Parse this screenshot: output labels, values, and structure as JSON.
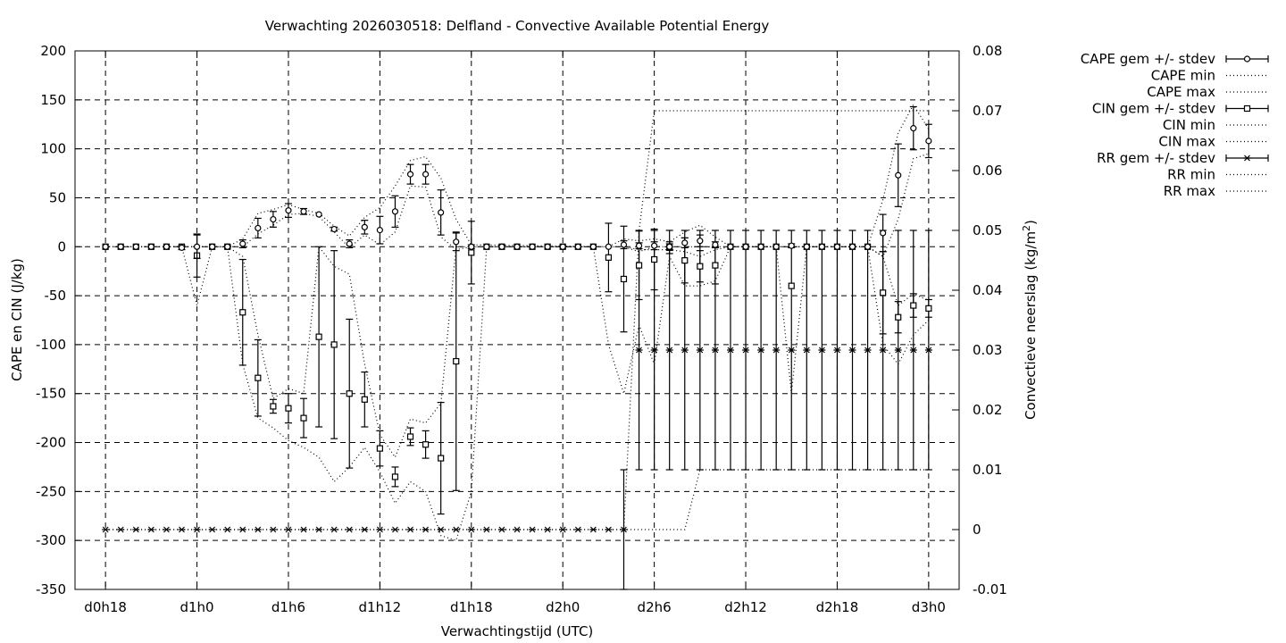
{
  "chart_data": {
    "type": "line",
    "title": "Verwachting 2026030518: Delfland - Convective Available Potential Energy",
    "xlabel": "Verwachtingstijd (UTC)",
    "ylabel": "CAPE en CIN (J/kg)",
    "y2label": "Convectieve neerslag (kg/m",
    "y2label_sup": "2",
    "y2label_end": ")",
    "xlim": [
      -2,
      56
    ],
    "ylim": [
      -350,
      200
    ],
    "y2lim": [
      -0.01,
      0.08
    ],
    "grid": true,
    "legend_position": "outside-right",
    "x_ticks": [
      {
        "x": 0,
        "label": "d0h18"
      },
      {
        "x": 6,
        "label": "d1h0"
      },
      {
        "x": 12,
        "label": "d1h6"
      },
      {
        "x": 18,
        "label": "d1h12"
      },
      {
        "x": 24,
        "label": "d1h18"
      },
      {
        "x": 30,
        "label": "d2h0"
      },
      {
        "x": 36,
        "label": "d2h6"
      },
      {
        "x": 42,
        "label": "d2h12"
      },
      {
        "x": 48,
        "label": "d2h18"
      },
      {
        "x": 54,
        "label": "d3h0"
      }
    ],
    "y_ticks": [
      "200",
      "150",
      "100",
      "50",
      "0",
      "-50",
      "-100",
      "-150",
      "-200",
      "-250",
      "-300",
      "-350"
    ],
    "y_tick_values": [
      200,
      150,
      100,
      50,
      0,
      -50,
      -100,
      -150,
      -200,
      -250,
      -300,
      -350
    ],
    "y2_ticks": [
      "0.08",
      "0.07",
      "0.06",
      "0.05",
      "0.04",
      "0.03",
      "0.02",
      "0.01",
      "0",
      "-0.01"
    ],
    "y2_tick_values": [
      0.08,
      0.07,
      0.06,
      0.05,
      0.04,
      0.03,
      0.02,
      0.01,
      0,
      -0.01
    ],
    "legend": [
      {
        "label": "CAPE gem +/- stdev",
        "style": "errorbar-circle"
      },
      {
        "label": "CAPE min",
        "style": "dotted"
      },
      {
        "label": "CAPE max",
        "style": "dotted"
      },
      {
        "label": "CIN gem +/- stdev",
        "style": "errorbar-square"
      },
      {
        "label": "CIN min",
        "style": "dotted"
      },
      {
        "label": "CIN max",
        "style": "dotted"
      },
      {
        "label": "RR gem +/- stdev",
        "style": "errorbar-star"
      },
      {
        "label": "RR min",
        "style": "dotted"
      },
      {
        "label": "RR max",
        "style": "dotted"
      }
    ],
    "cape": [
      {
        "x": 0,
        "y": 0,
        "sd": 0
      },
      {
        "x": 1,
        "y": 0,
        "sd": 0
      },
      {
        "x": 2,
        "y": 0,
        "sd": 0
      },
      {
        "x": 3,
        "y": 0,
        "sd": 0
      },
      {
        "x": 4,
        "y": 0,
        "sd": 0
      },
      {
        "x": 5,
        "y": -1,
        "sd": 2
      },
      {
        "x": 6,
        "y": 0,
        "sd": 12
      },
      {
        "x": 7,
        "y": 0,
        "sd": 0
      },
      {
        "x": 8,
        "y": 0,
        "sd": 0
      },
      {
        "x": 9,
        "y": 3,
        "sd": 4
      },
      {
        "x": 10,
        "y": 19,
        "sd": 10
      },
      {
        "x": 11,
        "y": 28,
        "sd": 8
      },
      {
        "x": 12,
        "y": 37,
        "sd": 7
      },
      {
        "x": 13,
        "y": 36,
        "sd": 3
      },
      {
        "x": 14,
        "y": 33,
        "sd": 0
      },
      {
        "x": 15,
        "y": 18,
        "sd": 2
      },
      {
        "x": 16,
        "y": 3,
        "sd": 4
      },
      {
        "x": 17,
        "y": 20,
        "sd": 7
      },
      {
        "x": 18,
        "y": 17,
        "sd": 14
      },
      {
        "x": 19,
        "y": 36,
        "sd": 16
      },
      {
        "x": 20,
        "y": 74,
        "sd": 10
      },
      {
        "x": 21,
        "y": 74,
        "sd": 10
      },
      {
        "x": 22,
        "y": 35,
        "sd": 23
      },
      {
        "x": 23,
        "y": 5,
        "sd": 9
      },
      {
        "x": 24,
        "y": 0,
        "sd": 2
      },
      {
        "x": 25,
        "y": 0,
        "sd": 0
      },
      {
        "x": 26,
        "y": 0,
        "sd": 0
      },
      {
        "x": 27,
        "y": 0,
        "sd": 0
      },
      {
        "x": 28,
        "y": 0,
        "sd": 0
      },
      {
        "x": 29,
        "y": 0,
        "sd": 0
      },
      {
        "x": 30,
        "y": 0,
        "sd": 0
      },
      {
        "x": 31,
        "y": 0,
        "sd": 0
      },
      {
        "x": 32,
        "y": 0,
        "sd": 0
      },
      {
        "x": 33,
        "y": 0,
        "sd": 0
      },
      {
        "x": 34,
        "y": 2,
        "sd": 4
      },
      {
        "x": 35,
        "y": 1,
        "sd": 3
      },
      {
        "x": 36,
        "y": 1,
        "sd": 4
      },
      {
        "x": 37,
        "y": 0,
        "sd": 3
      },
      {
        "x": 38,
        "y": 4,
        "sd": 5
      },
      {
        "x": 39,
        "y": 6,
        "sd": 6
      },
      {
        "x": 40,
        "y": 2,
        "sd": 3
      },
      {
        "x": 41,
        "y": 0,
        "sd": 0
      },
      {
        "x": 42,
        "y": 0,
        "sd": 0
      },
      {
        "x": 43,
        "y": 0,
        "sd": 0
      },
      {
        "x": 44,
        "y": 0,
        "sd": 0
      },
      {
        "x": 45,
        "y": 1,
        "sd": 2
      },
      {
        "x": 46,
        "y": 0,
        "sd": 0
      },
      {
        "x": 47,
        "y": 0,
        "sd": 0
      },
      {
        "x": 48,
        "y": 0,
        "sd": 0
      },
      {
        "x": 49,
        "y": 0,
        "sd": 0
      },
      {
        "x": 50,
        "y": 0,
        "sd": 0
      },
      {
        "x": 51,
        "y": 14,
        "sd": 19
      },
      {
        "x": 52,
        "y": 73,
        "sd": 32
      },
      {
        "x": 53,
        "y": 121,
        "sd": 22
      },
      {
        "x": 54,
        "y": 108,
        "sd": 17
      }
    ],
    "cape_min": [
      [
        0,
        0
      ],
      [
        5,
        0
      ],
      [
        6,
        0
      ],
      [
        8,
        0
      ],
      [
        9,
        0
      ],
      [
        10,
        13
      ],
      [
        11,
        22
      ],
      [
        12,
        33
      ],
      [
        13,
        34
      ],
      [
        14,
        31
      ],
      [
        15,
        15
      ],
      [
        16,
        -1
      ],
      [
        17,
        12
      ],
      [
        18,
        2
      ],
      [
        19,
        15
      ],
      [
        20,
        62
      ],
      [
        21,
        61
      ],
      [
        22,
        10
      ],
      [
        23,
        -3
      ],
      [
        24,
        0
      ],
      [
        34,
        0
      ],
      [
        35,
        -3
      ],
      [
        36,
        -3
      ],
      [
        37,
        -3
      ],
      [
        38,
        -5
      ],
      [
        39,
        -10
      ],
      [
        40,
        -3
      ],
      [
        41,
        0
      ],
      [
        50,
        0
      ],
      [
        51,
        -10
      ],
      [
        52,
        28
      ],
      [
        53,
        90
      ],
      [
        54,
        95
      ]
    ],
    "cape_max": [
      [
        0,
        0
      ],
      [
        5,
        0
      ],
      [
        6,
        0
      ],
      [
        8,
        0
      ],
      [
        9,
        8
      ],
      [
        10,
        34
      ],
      [
        11,
        38
      ],
      [
        12,
        43
      ],
      [
        13,
        38
      ],
      [
        14,
        34
      ],
      [
        15,
        21
      ],
      [
        16,
        11
      ],
      [
        17,
        30
      ],
      [
        18,
        40
      ],
      [
        19,
        62
      ],
      [
        20,
        88
      ],
      [
        21,
        92
      ],
      [
        22,
        70
      ],
      [
        23,
        28
      ],
      [
        24,
        2
      ],
      [
        33,
        0
      ],
      [
        34,
        8
      ],
      [
        35,
        6
      ],
      [
        36,
        8
      ],
      [
        37,
        5
      ],
      [
        38,
        15
      ],
      [
        39,
        22
      ],
      [
        40,
        10
      ],
      [
        41,
        0
      ],
      [
        50,
        0
      ],
      [
        51,
        48
      ],
      [
        52,
        116
      ],
      [
        53,
        145
      ],
      [
        54,
        120
      ]
    ],
    "cin": [
      {
        "x": 0,
        "y": 0,
        "sd": 0
      },
      {
        "x": 1,
        "y": 0,
        "sd": 0
      },
      {
        "x": 2,
        "y": 0,
        "sd": 0
      },
      {
        "x": 3,
        "y": 0,
        "sd": 0
      },
      {
        "x": 4,
        "y": 0,
        "sd": 0
      },
      {
        "x": 5,
        "y": 0,
        "sd": 0
      },
      {
        "x": 6,
        "y": -9,
        "sd": 22
      },
      {
        "x": 7,
        "y": 0,
        "sd": 0
      },
      {
        "x": 8,
        "y": 0,
        "sd": 0
      },
      {
        "x": 9,
        "y": -67,
        "sd": 54
      },
      {
        "x": 10,
        "y": -134,
        "sd": 39
      },
      {
        "x": 11,
        "y": -163,
        "sd": 7
      },
      {
        "x": 12,
        "y": -165,
        "sd": 15
      },
      {
        "x": 13,
        "y": -175,
        "sd": 20
      },
      {
        "x": 14,
        "y": -92,
        "sd": 92
      },
      {
        "x": 15,
        "y": -100,
        "sd": 96
      },
      {
        "x": 16,
        "y": -150,
        "sd": 76
      },
      {
        "x": 17,
        "y": -156,
        "sd": 28
      },
      {
        "x": 18,
        "y": -206,
        "sd": 18
      },
      {
        "x": 19,
        "y": -235,
        "sd": 10
      },
      {
        "x": 20,
        "y": -194,
        "sd": 9
      },
      {
        "x": 21,
        "y": -202,
        "sd": 14
      },
      {
        "x": 22,
        "y": -216,
        "sd": 57
      },
      {
        "x": 23,
        "y": -117,
        "sd": 132
      },
      {
        "x": 24,
        "y": -6,
        "sd": 32
      },
      {
        "x": 25,
        "y": 0,
        "sd": 0
      },
      {
        "x": 26,
        "y": 0,
        "sd": 0
      },
      {
        "x": 27,
        "y": 0,
        "sd": 0
      },
      {
        "x": 28,
        "y": 0,
        "sd": 0
      },
      {
        "x": 29,
        "y": 0,
        "sd": 0
      },
      {
        "x": 30,
        "y": 0,
        "sd": 0
      },
      {
        "x": 31,
        "y": 0,
        "sd": 0
      },
      {
        "x": 32,
        "y": 0,
        "sd": 0
      },
      {
        "x": 33,
        "y": -11,
        "sd": 35
      },
      {
        "x": 34,
        "y": -33,
        "sd": 54
      },
      {
        "x": 35,
        "y": -19,
        "sd": 35
      },
      {
        "x": 36,
        "y": -13,
        "sd": 31
      },
      {
        "x": 37,
        "y": -1,
        "sd": 6
      },
      {
        "x": 38,
        "y": -14,
        "sd": 23
      },
      {
        "x": 39,
        "y": -20,
        "sd": 16
      },
      {
        "x": 40,
        "y": -19,
        "sd": 19
      },
      {
        "x": 41,
        "y": 0,
        "sd": 0
      },
      {
        "x": 42,
        "y": 0,
        "sd": 0
      },
      {
        "x": 43,
        "y": 0,
        "sd": 0
      },
      {
        "x": 44,
        "y": 0,
        "sd": 0
      },
      {
        "x": 45,
        "y": -40,
        "sd": 0
      },
      {
        "x": 46,
        "y": 0,
        "sd": 0
      },
      {
        "x": 47,
        "y": 0,
        "sd": 0
      },
      {
        "x": 48,
        "y": 0,
        "sd": 0
      },
      {
        "x": 49,
        "y": 0,
        "sd": 0
      },
      {
        "x": 50,
        "y": 0,
        "sd": 0
      },
      {
        "x": 51,
        "y": -47,
        "sd": 42
      },
      {
        "x": 52,
        "y": -72,
        "sd": 16
      },
      {
        "x": 53,
        "y": -60,
        "sd": 12
      },
      {
        "x": 54,
        "y": -63,
        "sd": 9
      }
    ],
    "cin_min": [
      [
        0,
        0
      ],
      [
        5,
        0
      ],
      [
        6,
        -60
      ],
      [
        7,
        0
      ],
      [
        8,
        0
      ],
      [
        9,
        -120
      ],
      [
        10,
        -175
      ],
      [
        11,
        -185
      ],
      [
        12,
        -198
      ],
      [
        13,
        -205
      ],
      [
        14,
        -215
      ],
      [
        15,
        -240
      ],
      [
        16,
        -225
      ],
      [
        17,
        -205
      ],
      [
        18,
        -230
      ],
      [
        19,
        -262
      ],
      [
        20,
        -240
      ],
      [
        21,
        -250
      ],
      [
        22,
        -295
      ],
      [
        23,
        -300
      ],
      [
        24,
        -250
      ],
      [
        25,
        0
      ],
      [
        32,
        0
      ],
      [
        33,
        -100
      ],
      [
        34,
        -150
      ],
      [
        35,
        -80
      ],
      [
        36,
        -120
      ],
      [
        37,
        -10
      ],
      [
        38,
        -40
      ],
      [
        39,
        -40
      ],
      [
        40,
        -35
      ],
      [
        41,
        0
      ],
      [
        44,
        0
      ],
      [
        45,
        -150
      ],
      [
        46,
        0
      ],
      [
        50,
        0
      ],
      [
        51,
        -100
      ],
      [
        52,
        -120
      ],
      [
        53,
        -90
      ],
      [
        54,
        -75
      ]
    ],
    "cin_max": [
      [
        0,
        0
      ],
      [
        5,
        0
      ],
      [
        6,
        0
      ],
      [
        8,
        0
      ],
      [
        9,
        -10
      ],
      [
        10,
        -90
      ],
      [
        11,
        -155
      ],
      [
        12,
        -145
      ],
      [
        13,
        -150
      ],
      [
        14,
        0
      ],
      [
        15,
        -20
      ],
      [
        16,
        -28
      ],
      [
        17,
        -120
      ],
      [
        18,
        -192
      ],
      [
        19,
        -215
      ],
      [
        20,
        -176
      ],
      [
        21,
        -180
      ],
      [
        22,
        -160
      ],
      [
        23,
        0
      ],
      [
        24,
        0
      ],
      [
        32,
        0
      ],
      [
        33,
        0
      ],
      [
        34,
        0
      ],
      [
        35,
        -5
      ],
      [
        36,
        0
      ],
      [
        37,
        0
      ],
      [
        38,
        0
      ],
      [
        39,
        0
      ],
      [
        40,
        0
      ],
      [
        41,
        0
      ],
      [
        50,
        0
      ],
      [
        51,
        -10
      ],
      [
        52,
        -60
      ],
      [
        53,
        -48
      ],
      [
        54,
        -55
      ]
    ],
    "rr": [
      {
        "x": 0,
        "y": 0,
        "sd": 0
      },
      {
        "x": 1,
        "y": 0,
        "sd": 0
      },
      {
        "x": 2,
        "y": 0,
        "sd": 0
      },
      {
        "x": 3,
        "y": 0,
        "sd": 0
      },
      {
        "x": 4,
        "y": 0,
        "sd": 0
      },
      {
        "x": 5,
        "y": 0,
        "sd": 0
      },
      {
        "x": 6,
        "y": 0,
        "sd": 0
      },
      {
        "x": 7,
        "y": 0,
        "sd": 0
      },
      {
        "x": 8,
        "y": 0,
        "sd": 0
      },
      {
        "x": 9,
        "y": 0,
        "sd": 0
      },
      {
        "x": 10,
        "y": 0,
        "sd": 0
      },
      {
        "x": 11,
        "y": 0,
        "sd": 0
      },
      {
        "x": 12,
        "y": 0,
        "sd": 0
      },
      {
        "x": 13,
        "y": 0,
        "sd": 0
      },
      {
        "x": 14,
        "y": 0,
        "sd": 0
      },
      {
        "x": 15,
        "y": 0,
        "sd": 0
      },
      {
        "x": 16,
        "y": 0,
        "sd": 0
      },
      {
        "x": 17,
        "y": 0,
        "sd": 0
      },
      {
        "x": 18,
        "y": 0,
        "sd": 0
      },
      {
        "x": 19,
        "y": 0,
        "sd": 0
      },
      {
        "x": 20,
        "y": 0,
        "sd": 0
      },
      {
        "x": 21,
        "y": 0,
        "sd": 0
      },
      {
        "x": 22,
        "y": 0,
        "sd": 0
      },
      {
        "x": 23,
        "y": 0,
        "sd": 0
      },
      {
        "x": 24,
        "y": 0,
        "sd": 0
      },
      {
        "x": 25,
        "y": 0,
        "sd": 0
      },
      {
        "x": 26,
        "y": 0,
        "sd": 0
      },
      {
        "x": 27,
        "y": 0,
        "sd": 0
      },
      {
        "x": 28,
        "y": 0,
        "sd": 0
      },
      {
        "x": 29,
        "y": 0,
        "sd": 0
      },
      {
        "x": 30,
        "y": 0,
        "sd": 0
      },
      {
        "x": 31,
        "y": 0,
        "sd": 0
      },
      {
        "x": 32,
        "y": 0,
        "sd": 0
      },
      {
        "x": 33,
        "y": 0,
        "sd": 0
      },
      {
        "x": 34,
        "y": 0,
        "sd": 0.01
      },
      {
        "x": 35,
        "y": 0.03,
        "sd": 0.02
      },
      {
        "x": 36,
        "y": 0.03,
        "sd": 0.02
      },
      {
        "x": 37,
        "y": 0.03,
        "sd": 0.02
      },
      {
        "x": 38,
        "y": 0.03,
        "sd": 0.02
      },
      {
        "x": 39,
        "y": 0.03,
        "sd": 0.02
      },
      {
        "x": 40,
        "y": 0.03,
        "sd": 0.02
      },
      {
        "x": 41,
        "y": 0.03,
        "sd": 0.02
      },
      {
        "x": 42,
        "y": 0.03,
        "sd": 0.02
      },
      {
        "x": 43,
        "y": 0.03,
        "sd": 0.02
      },
      {
        "x": 44,
        "y": 0.03,
        "sd": 0.02
      },
      {
        "x": 45,
        "y": 0.03,
        "sd": 0.02
      },
      {
        "x": 46,
        "y": 0.03,
        "sd": 0.02
      },
      {
        "x": 47,
        "y": 0.03,
        "sd": 0.02
      },
      {
        "x": 48,
        "y": 0.03,
        "sd": 0.02
      },
      {
        "x": 49,
        "y": 0.03,
        "sd": 0.02
      },
      {
        "x": 50,
        "y": 0.03,
        "sd": 0.02
      },
      {
        "x": 51,
        "y": 0.03,
        "sd": 0.02
      },
      {
        "x": 52,
        "y": 0.03,
        "sd": 0.02
      },
      {
        "x": 53,
        "y": 0.03,
        "sd": 0.02
      },
      {
        "x": 54,
        "y": 0.03,
        "sd": 0.02
      }
    ],
    "rr_min": [
      [
        0,
        0
      ],
      [
        38,
        0
      ],
      [
        39,
        0.01
      ],
      [
        54,
        0.01
      ]
    ],
    "rr_max": [
      [
        0,
        0
      ],
      [
        34,
        0
      ],
      [
        35,
        0.05
      ],
      [
        36,
        0.07
      ],
      [
        54,
        0.07
      ]
    ]
  }
}
